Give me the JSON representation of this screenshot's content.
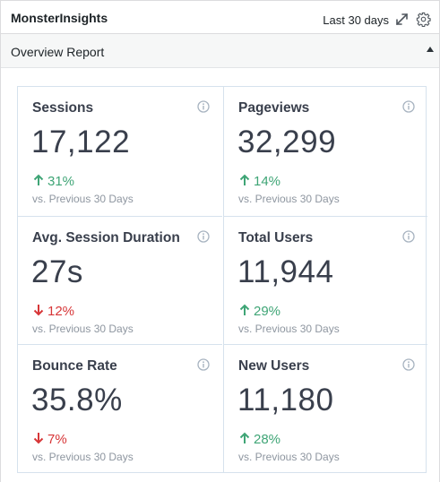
{
  "widget": {
    "title": "MonsterInsights",
    "date_range": "Last 30 days",
    "icons": [
      "expand-icon",
      "gear-icon"
    ]
  },
  "section": {
    "title": "Overview Report",
    "toggle_icon": "collapse-arrow-icon"
  },
  "colors": {
    "up": "#3fa576",
    "down": "#d73638",
    "grid_border": "#d6e2ed",
    "text": "#393f4c",
    "muted": "#8e96a0"
  },
  "metrics": [
    {
      "label": "Sessions",
      "value": "17,122",
      "change": "31%",
      "direction": "up",
      "compare": "vs. Previous 30 Days"
    },
    {
      "label": "Pageviews",
      "value": "32,299",
      "change": "14%",
      "direction": "up",
      "compare": "vs. Previous 30 Days"
    },
    {
      "label": "Avg. Session Duration",
      "value": "27s",
      "change": "12%",
      "direction": "down",
      "compare": "vs. Previous 30 Days"
    },
    {
      "label": "Total Users",
      "value": "11,944",
      "change": "29%",
      "direction": "up",
      "compare": "vs. Previous 30 Days"
    },
    {
      "label": "Bounce Rate",
      "value": "35.8%",
      "change": "7%",
      "direction": "down",
      "compare": "vs. Previous 30 Days"
    },
    {
      "label": "New Users",
      "value": "11,180",
      "change": "28%",
      "direction": "up",
      "compare": "vs. Previous 30 Days"
    }
  ]
}
